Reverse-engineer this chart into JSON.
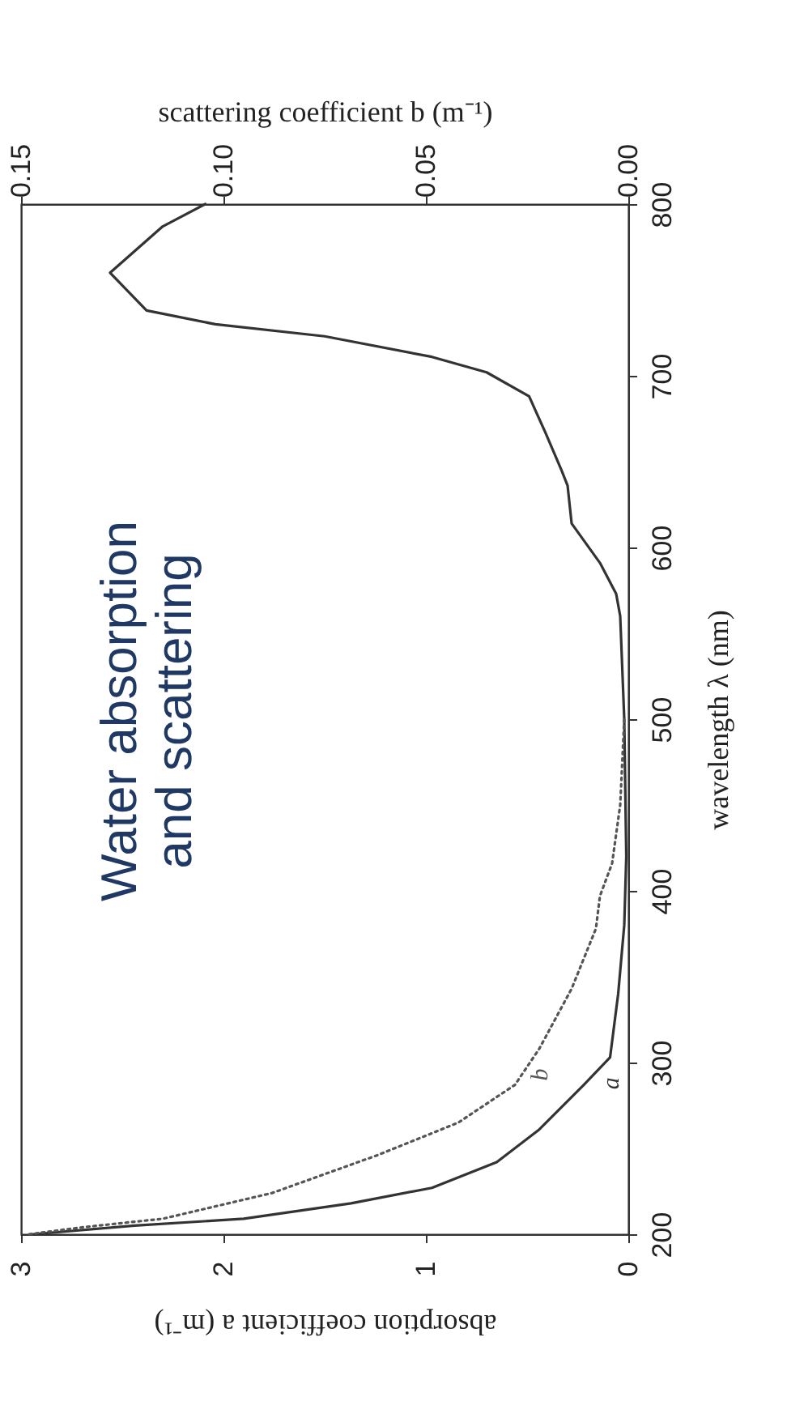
{
  "chart_data": {
    "type": "line",
    "xlabel": "absorption coefficient a (m⁻¹)",
    "x2label": "scattering coefficient b (m⁻¹)",
    "ylabel": "wavelength λ (nm)",
    "annotations": [
      "Water absorption and scattering"
    ],
    "xlim": [
      3,
      0
    ],
    "xticks": [
      3,
      2,
      1,
      0
    ],
    "x2lim": [
      0.15,
      0
    ],
    "x2ticks": [
      {
        "value": 0.15,
        "label": "0.15"
      },
      {
        "value": 0.1,
        "label": "0.10"
      },
      {
        "value": 0.05,
        "label": "0.05"
      },
      {
        "value": 0,
        "label": "0.00"
      }
    ],
    "ylim": [
      200,
      800
    ],
    "yticks": [
      200,
      300,
      400,
      500,
      600,
      700,
      800
    ],
    "grid": false,
    "series": [
      {
        "name": "a",
        "color": "#333333",
        "line_style": "solid",
        "x": [
          2.94,
          2.44,
          1.9,
          1.37,
          0.97,
          0.65,
          0.44,
          0.22,
          0.09,
          0.05,
          0.02,
          0.01,
          0.02,
          0.04,
          0.06,
          0.14,
          0.28,
          0.3,
          0.33,
          0.41,
          0.49,
          0.7,
          0.97,
          1.5,
          2.04,
          2.38,
          2.56,
          2.3,
          2.09
        ],
        "values": [
          200,
          205,
          209,
          218,
          227,
          242,
          261,
          287,
          303,
          340,
          380,
          420,
          500,
          560,
          573,
          591,
          614,
          636,
          645,
          667,
          688,
          702,
          711,
          723,
          730,
          738,
          760,
          787,
          800
        ]
      },
      {
        "name": "b",
        "color": "#555555",
        "line_style": "dotted",
        "axis": "x2",
        "x": [
          0.148,
          0.135,
          0.115,
          0.088,
          0.062,
          0.042,
          0.028,
          0.022,
          0.014,
          0.008,
          0.007,
          0.004,
          0.002,
          0.001
        ],
        "values": [
          200,
          204,
          209,
          224,
          246,
          265,
          287,
          308,
          343,
          378,
          397,
          416,
          450,
          500
        ]
      }
    ]
  }
}
